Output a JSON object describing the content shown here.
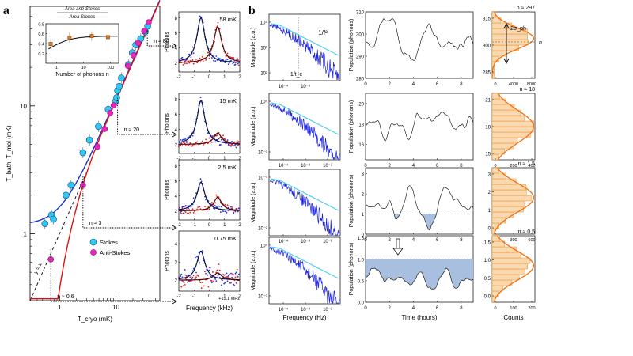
{
  "panel_a": {
    "label": "a"
  },
  "panel_b": {
    "label": "b"
  },
  "chart_data": [
    {
      "id": "main",
      "type": "scatter",
      "xlabel": "T_cryo (mK)",
      "ylabel": "T_bath, T_mol (mK)",
      "xscale": "log",
      "yscale": "log",
      "xlim": [
        0.3,
        60
      ],
      "ylim": [
        0.3,
        60
      ],
      "x_ticks": [
        "1",
        "10"
      ],
      "y_ticks": [
        "1",
        "10"
      ],
      "legend": [
        "Stokes",
        "Anti-Stokes"
      ],
      "line_label": "y = x",
      "annotations": [
        "n ≈ 80",
        "n ≈ 20",
        "n ≈ 3",
        "n ≈ 0.6"
      ],
      "stokes": [
        [
          0.55,
          1.2
        ],
        [
          0.72,
          1.4
        ],
        [
          0.78,
          1.3
        ],
        [
          1.3,
          2.0
        ],
        [
          1.6,
          2.4
        ],
        [
          2.6,
          4.3
        ],
        [
          3.4,
          5.4
        ],
        [
          4.9,
          6.9
        ],
        [
          7.3,
          9.4
        ],
        [
          9.8,
          10.8
        ],
        [
          10.3,
          11.6
        ],
        [
          10.7,
          13.2
        ],
        [
          11.4,
          14.2
        ],
        [
          12.5,
          16.5
        ],
        [
          16.6,
          21.0
        ],
        [
          19.5,
          26.0
        ],
        [
          22.5,
          30.0
        ],
        [
          27.5,
          33.5
        ],
        [
          33.0,
          38.0
        ],
        [
          36.5,
          42.0
        ]
      ],
      "anti_stokes": [
        [
          0.7,
          0.63
        ],
        [
          2.6,
          2.4
        ],
        [
          4.7,
          4.8
        ],
        [
          6.3,
          6.6
        ],
        [
          7.9,
          8.8
        ],
        [
          9.1,
          10.1
        ],
        [
          16.4,
          20.5
        ],
        [
          20.5,
          24.8
        ],
        [
          24.8,
          31.0
        ],
        [
          31.8,
          38.6
        ],
        [
          38.0,
          45.0
        ]
      ],
      "inset": {
        "xlabel": "Number of phonons n",
        "ylabel_num": "Area anti-Stokes",
        "ylabel_den": "Area Stokes",
        "y_ticks": [
          "0.2",
          "0.4",
          "0.6",
          "0.8"
        ],
        "x_ticks": [
          "1",
          "10",
          "100"
        ],
        "points": [
          [
            0.6,
            0.39
          ],
          [
            3,
            0.52
          ],
          [
            20,
            0.55
          ],
          [
            80,
            0.53
          ]
        ]
      }
    },
    {
      "id": "spectra",
      "type": "scatter",
      "xlabel": "Frequency (kHz)",
      "ylabel": "Photons",
      "xlim": [
        -2,
        2
      ],
      "x_ticks": [
        "-2",
        "-1",
        "0",
        "1",
        "2"
      ],
      "x_note": "+15.1 MHz",
      "panels": [
        {
          "temp": "58 mK",
          "y_ticks": [
            "2",
            "4",
            "6",
            "8"
          ]
        },
        {
          "temp": "15 mK",
          "y_ticks": [
            "2",
            "4",
            "6",
            "8"
          ]
        },
        {
          "temp": "2.5 mK",
          "y_ticks": [
            "2",
            "4",
            "6",
            "8"
          ]
        },
        {
          "temp": "0.75 mK",
          "y_ticks": [
            "2",
            "3",
            "4"
          ]
        }
      ]
    },
    {
      "id": "psd",
      "type": "line",
      "xlabel": "Frequency (Hz)",
      "ylabel": "Magnitude (a.u.)",
      "xscale": "log",
      "yscale": "log",
      "annotations": [
        "1/f²",
        "1/t_c"
      ],
      "panels": [
        {
          "x_ticks": [
            "10⁻⁴",
            "10⁻³"
          ],
          "y_ticks": [
            "10⁴",
            "10³",
            "10²"
          ]
        },
        {
          "x_ticks": [
            "10⁻⁴",
            "10⁻³",
            "10⁻²"
          ],
          "y_ticks": [
            "10⁰",
            "10⁻¹"
          ]
        },
        {
          "x_ticks": [
            "10⁻⁴",
            "10⁻³",
            "10⁻²"
          ],
          "y_ticks": [
            "10⁻¹",
            "10⁻²"
          ]
        },
        {
          "x_ticks": [
            "10⁻⁴",
            "10⁻³",
            "10⁻²"
          ],
          "y_ticks": [
            "10⁰",
            "10⁻¹"
          ]
        }
      ]
    },
    {
      "id": "population",
      "type": "line",
      "xlabel": "Time (hours)",
      "ylabel": "Population (phonons)",
      "x_ticks": [
        "0",
        "2",
        "4",
        "6",
        "8"
      ],
      "panels": [
        {
          "ylim": [
            280,
            310
          ],
          "y_ticks": [
            "280",
            "290",
            "300",
            "310"
          ]
        },
        {
          "ylim": [
            14.5,
            21
          ],
          "y_ticks": [
            "16",
            "18",
            "20"
          ]
        },
        {
          "ylim": [
            0,
            3.3
          ],
          "y_ticks": [
            "0",
            "1",
            "2",
            "3"
          ]
        },
        {
          "ylim": [
            0,
            1.55
          ],
          "y_ticks": [
            "0.0",
            "0.5",
            "1.0",
            "1.5"
          ]
        }
      ]
    },
    {
      "id": "histograms",
      "type": "bar",
      "xlabel": "Counts",
      "annotations": [
        "2σ_ph",
        "n"
      ],
      "panels": [
        {
          "n_label": "n ≈ 297",
          "x_ticks": [
            "0",
            "4000",
            "8000"
          ],
          "y_ticks": [
            "285",
            "300",
            "315"
          ]
        },
        {
          "n_label": "n ≈ 18",
          "x_ticks": [
            "0",
            "200",
            "400"
          ],
          "y_ticks": [
            "15",
            "18",
            "21"
          ]
        },
        {
          "n_label": "n ≈ 1.5",
          "x_ticks": [
            "0",
            "300",
            "600"
          ],
          "y_ticks": [
            "0",
            "1",
            "2",
            "3"
          ]
        },
        {
          "n_label": "n ≈ 0.5",
          "x_ticks": [
            "0",
            "100",
            "200"
          ],
          "y_ticks": [
            "0.0",
            "0.5",
            "1.0",
            "1.5"
          ]
        }
      ]
    }
  ]
}
